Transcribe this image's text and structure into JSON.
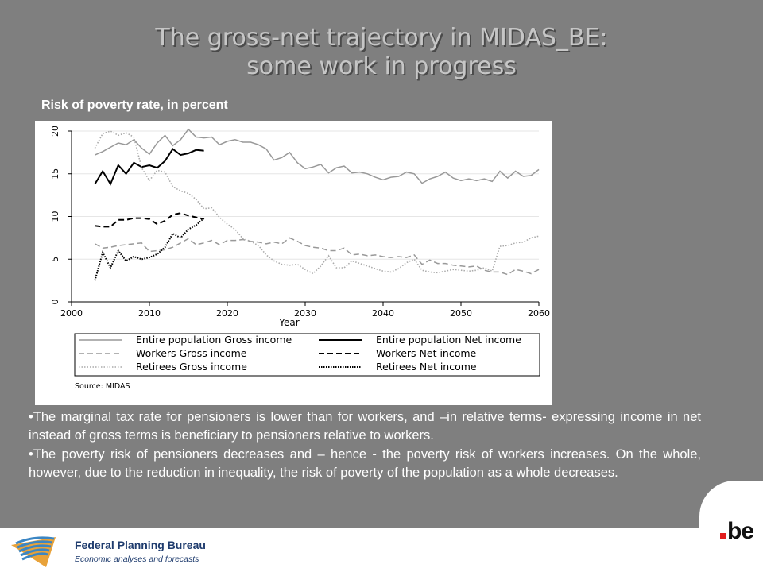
{
  "slide": {
    "title_line1": "The gross-net trajectory in MIDAS_BE:",
    "title_line2": "some work in progress",
    "subtitle": "Risk of poverty rate, in percent",
    "bullets": [
      "•The marginal tax rate for pensioners is lower than for workers, and –in relative terms- expressing income in net instead of gross terms is beneficiary to pensioners relative to workers.",
      "•The poverty risk of pensioners decreases and – hence - the poverty risk of workers increases. On the whole, however, due to the reduction in inequality, the risk of poverty of the population as a whole decreases."
    ]
  },
  "footer": {
    "org_name": "Federal Planning Bureau",
    "org_tagline": "Economic analyses and forecasts",
    "logo_text": "be",
    "colors": {
      "logo_dot": "#e21d1d",
      "org_text": "#1f3c6e"
    }
  },
  "chart_data": {
    "type": "line",
    "xlabel": "Year",
    "ylabel": "",
    "xlim": [
      2000,
      2060
    ],
    "ylim": [
      0,
      20
    ],
    "x_ticks": [
      "2000",
      "2010",
      "2020",
      "2030",
      "2040",
      "2050",
      "2060"
    ],
    "y_ticks": [
      "0",
      "5",
      "10",
      "15",
      "20"
    ],
    "grid": true,
    "legend_position": "bottom",
    "source": "Source: MIDAS",
    "series": [
      {
        "name": "Entire population Gross income",
        "style": "solid-gray",
        "x": [
          2003,
          2004,
          2005,
          2006,
          2007,
          2008,
          2009,
          2010,
          2011,
          2012,
          2013,
          2014,
          2015,
          2016,
          2017,
          2018,
          2019,
          2020,
          2021,
          2022,
          2023,
          2024,
          2025,
          2026,
          2027,
          2028,
          2029,
          2030,
          2031,
          2032,
          2033,
          2034,
          2035,
          2036,
          2037,
          2038,
          2039,
          2040,
          2041,
          2042,
          2043,
          2044,
          2045,
          2046,
          2047,
          2048,
          2049,
          2050,
          2051,
          2052,
          2053,
          2054,
          2055,
          2056,
          2057,
          2058,
          2059,
          2060
        ],
        "y": [
          17.2,
          17.6,
          18.1,
          18.6,
          18.4,
          19.0,
          18.0,
          17.3,
          18.6,
          19.5,
          18.3,
          19.0,
          20.2,
          19.3,
          19.2,
          19.3,
          18.4,
          18.8,
          19.0,
          18.7,
          18.7,
          18.4,
          17.9,
          16.6,
          16.9,
          17.5,
          16.3,
          15.6,
          15.8,
          16.1,
          15.1,
          15.7,
          15.9,
          15.1,
          15.2,
          15.0,
          14.6,
          14.3,
          14.6,
          14.7,
          15.2,
          15.0,
          13.9,
          14.4,
          14.7,
          15.2,
          14.5,
          14.2,
          14.4,
          14.2,
          14.4,
          14.1,
          15.3,
          14.5,
          15.3,
          14.7,
          14.8,
          15.5
        ]
      },
      {
        "name": "Entire population Net income",
        "style": "solid-black",
        "x": [
          2003,
          2004,
          2005,
          2006,
          2007,
          2008,
          2009,
          2010,
          2011,
          2012,
          2013,
          2014,
          2015,
          2016,
          2017
        ],
        "y": [
          13.8,
          15.3,
          13.8,
          16.0,
          15.0,
          16.3,
          15.8,
          16.0,
          15.7,
          16.5,
          17.9,
          17.2,
          17.4,
          17.8,
          17.7
        ]
      },
      {
        "name": "Workers Gross income",
        "style": "dashed-gray",
        "x": [
          2003,
          2004,
          2005,
          2006,
          2007,
          2008,
          2009,
          2010,
          2011,
          2012,
          2013,
          2014,
          2015,
          2016,
          2017,
          2018,
          2019,
          2020,
          2021,
          2022,
          2023,
          2024,
          2025,
          2026,
          2027,
          2028,
          2029,
          2030,
          2031,
          2032,
          2033,
          2034,
          2035,
          2036,
          2037,
          2038,
          2039,
          2040,
          2041,
          2042,
          2043,
          2044,
          2045,
          2046,
          2047,
          2048,
          2049,
          2050,
          2051,
          2052,
          2053,
          2054,
          2055,
          2056,
          2057,
          2058,
          2059,
          2060
        ],
        "y": [
          6.8,
          6.3,
          6.4,
          6.6,
          6.7,
          6.8,
          6.9,
          5.9,
          6.0,
          6.1,
          6.4,
          6.9,
          7.4,
          6.7,
          6.9,
          7.2,
          6.7,
          7.2,
          7.2,
          7.3,
          7.1,
          7.0,
          6.8,
          7.0,
          6.8,
          7.5,
          7.1,
          6.6,
          6.4,
          6.3,
          6.0,
          6.0,
          6.3,
          5.5,
          5.6,
          5.4,
          5.5,
          5.3,
          5.2,
          5.3,
          5.2,
          5.5,
          4.4,
          4.9,
          4.5,
          4.5,
          4.3,
          4.2,
          4.1,
          4.2,
          3.7,
          3.5,
          3.5,
          3.2,
          3.8,
          3.6,
          3.3,
          3.8
        ]
      },
      {
        "name": "Workers Net income",
        "style": "dashed-black",
        "x": [
          2003,
          2004,
          2005,
          2006,
          2007,
          2008,
          2009,
          2010,
          2011,
          2012,
          2013,
          2014,
          2015,
          2016,
          2017
        ],
        "y": [
          8.9,
          8.8,
          8.8,
          9.6,
          9.6,
          9.8,
          9.8,
          9.7,
          9.1,
          9.5,
          10.2,
          10.4,
          10.1,
          9.9,
          9.7
        ]
      },
      {
        "name": "Retirees Gross income",
        "style": "dotted-gray",
        "x": [
          2003,
          2004,
          2005,
          2006,
          2007,
          2008,
          2009,
          2010,
          2011,
          2012,
          2013,
          2014,
          2015,
          2016,
          2017,
          2018,
          2019,
          2020,
          2021,
          2022,
          2023,
          2024,
          2025,
          2026,
          2027,
          2028,
          2029,
          2030,
          2031,
          2032,
          2033,
          2034,
          2035,
          2036,
          2037,
          2038,
          2039,
          2040,
          2041,
          2042,
          2043,
          2044,
          2045,
          2046,
          2047,
          2048,
          2049,
          2050,
          2051,
          2052,
          2053,
          2054,
          2055,
          2056,
          2057,
          2058,
          2059,
          2060
        ],
        "y": [
          18.0,
          19.7,
          20.0,
          19.5,
          19.8,
          19.3,
          15.7,
          14.2,
          15.4,
          15.2,
          13.5,
          13.0,
          12.7,
          12.0,
          10.9,
          11.0,
          9.9,
          9.1,
          8.5,
          7.4,
          7.1,
          6.6,
          5.5,
          4.8,
          4.4,
          4.3,
          4.4,
          3.8,
          3.3,
          4.2,
          5.4,
          4.0,
          4.0,
          4.8,
          4.5,
          4.2,
          3.9,
          3.6,
          3.5,
          3.9,
          4.6,
          5.0,
          3.7,
          3.5,
          3.4,
          3.6,
          3.8,
          3.7,
          3.6,
          3.7,
          4.0,
          3.6,
          6.5,
          6.6,
          6.9,
          7.0,
          7.5,
          7.7
        ]
      },
      {
        "name": "Retirees Net income",
        "style": "dotted-black",
        "x": [
          2003,
          2004,
          2005,
          2006,
          2007,
          2008,
          2009,
          2010,
          2011,
          2012,
          2013,
          2014,
          2015,
          2016,
          2017
        ],
        "y": [
          2.5,
          5.8,
          4.0,
          6.0,
          4.8,
          5.3,
          5.0,
          5.2,
          5.6,
          6.4,
          8.0,
          7.5,
          8.5,
          9.0,
          9.8
        ]
      }
    ]
  }
}
